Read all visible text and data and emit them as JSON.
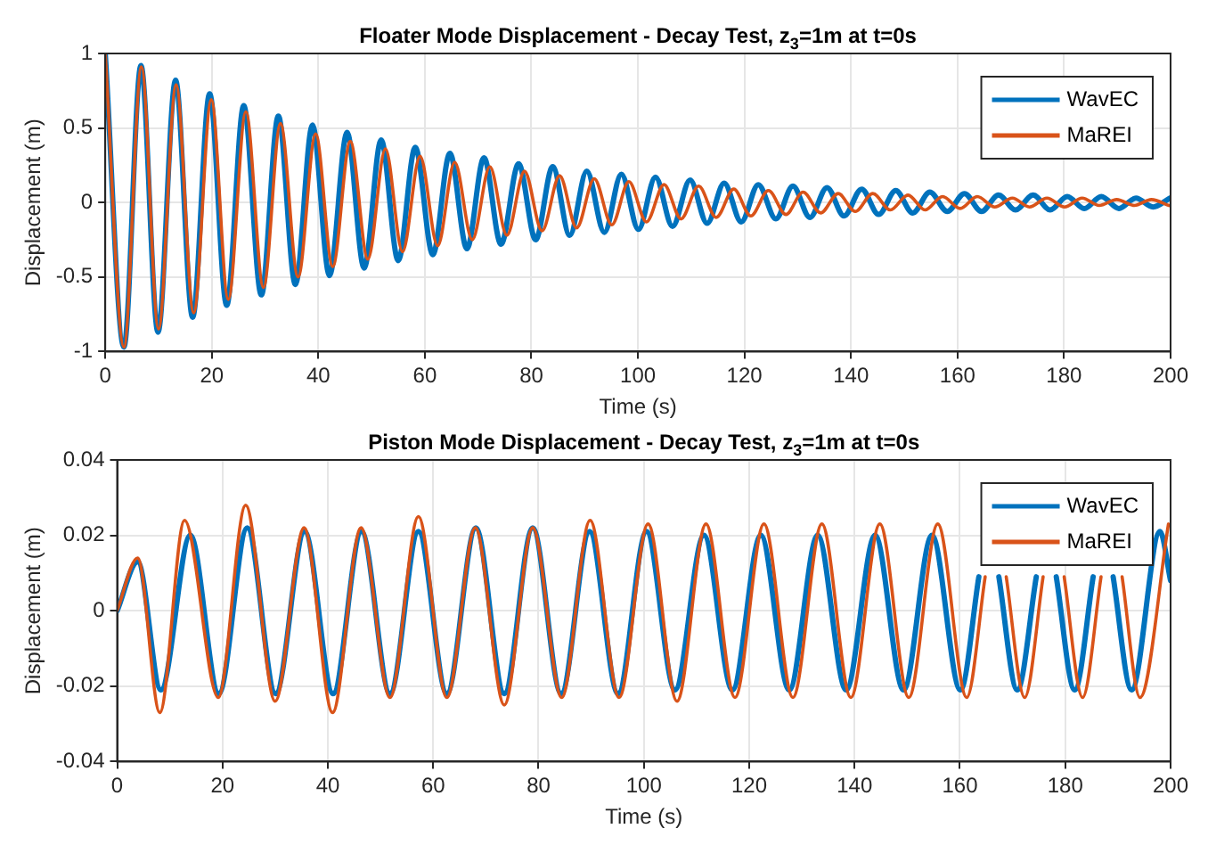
{
  "chart_data": [
    {
      "type": "line",
      "title": "Floater Mode Displacement - Decay Test, z$_{3}$=1m at t=0s",
      "xlabel": "Time (s)",
      "ylabel": "Displacement (m)",
      "xlim": [
        0,
        200
      ],
      "xticks": [
        0,
        20,
        40,
        60,
        80,
        100,
        120,
        140,
        160,
        180,
        200
      ],
      "ylim": [
        -1,
        1
      ],
      "yticks": [
        -1,
        -0.5,
        0,
        0.5,
        1
      ],
      "grid": true,
      "legend": "top right",
      "marker": "none",
      "line_style": "solid",
      "series": [
        {
          "name": "WavEC",
          "color": "#0072bd",
          "x": [
            0,
            3.5,
            6.7,
            9.9,
            13.2,
            16.4,
            19.6,
            22.8,
            26.0,
            29.3,
            32.5,
            35.7,
            38.9,
            42.1,
            45.4,
            48.6,
            51.8,
            55.0,
            58.2,
            61.5,
            64.7,
            67.9,
            71.1,
            74.3,
            77.6,
            80.8,
            84.0,
            87.2,
            90.4,
            93.7,
            96.9,
            100.1,
            103.3,
            106.5,
            109.8,
            113.0,
            116.2,
            119.4,
            122.6,
            125.9,
            129.1,
            132.3,
            135.5,
            138.7,
            142.0,
            145.2,
            148.4,
            151.6,
            154.8,
            158.1,
            161.3,
            164.5,
            167.7,
            170.9,
            174.2,
            177.4,
            180.6,
            183.8,
            187.0,
            190.3,
            193.5,
            196.7,
            199.9
          ],
          "values": [
            1,
            -0.97,
            0.92,
            -0.87,
            0.82,
            -0.77,
            0.73,
            -0.69,
            0.65,
            -0.62,
            0.58,
            -0.55,
            0.52,
            -0.49,
            0.47,
            -0.44,
            0.42,
            -0.39,
            0.37,
            -0.35,
            0.33,
            -0.31,
            0.3,
            -0.28,
            0.26,
            -0.25,
            0.24,
            -0.22,
            0.21,
            -0.2,
            0.19,
            -0.18,
            0.17,
            -0.16,
            0.15,
            -0.14,
            0.13,
            -0.13,
            0.12,
            -0.11,
            0.11,
            -0.1,
            0.1,
            -0.09,
            0.09,
            -0.08,
            0.08,
            -0.07,
            0.07,
            -0.06,
            0.06,
            -0.06,
            0.05,
            -0.05,
            0.05,
            -0.05,
            0.04,
            -0.04,
            0.04,
            -0.04,
            0.03,
            -0.03,
            0.03
          ]
        },
        {
          "name": "MaREI",
          "color": "#d95319",
          "x": [
            0,
            3.5,
            6.8,
            10.0,
            13.3,
            16.6,
            19.9,
            23.1,
            26.4,
            29.7,
            32.9,
            36.2,
            39.5,
            42.7,
            46.0,
            49.3,
            52.6,
            55.8,
            59.1,
            62.4,
            65.6,
            68.9,
            72.2,
            75.4,
            78.7,
            82.0,
            85.3,
            88.5,
            91.8,
            95.1,
            98.3,
            101.6,
            104.9,
            108.1,
            111.4,
            114.7,
            118.0,
            121.2,
            124.5,
            127.8,
            131.0,
            134.3,
            137.6,
            140.8,
            144.1,
            147.4,
            150.7,
            153.9,
            157.2,
            160.5,
            163.7,
            167.0,
            170.3,
            173.5,
            176.8,
            180.1,
            183.4,
            186.6,
            189.9,
            193.2,
            196.4,
            199.7
          ],
          "values": [
            1,
            -0.97,
            0.91,
            -0.85,
            0.79,
            -0.74,
            0.69,
            -0.65,
            0.61,
            -0.57,
            0.53,
            -0.5,
            0.46,
            -0.43,
            0.41,
            -0.38,
            0.36,
            -0.33,
            0.31,
            -0.29,
            0.27,
            -0.25,
            0.24,
            -0.22,
            0.21,
            -0.19,
            0.18,
            -0.17,
            0.16,
            -0.15,
            0.14,
            -0.13,
            0.12,
            -0.11,
            0.11,
            -0.1,
            0.09,
            -0.09,
            0.08,
            -0.08,
            0.07,
            -0.07,
            0.06,
            -0.06,
            0.06,
            -0.05,
            0.05,
            -0.05,
            0.04,
            -0.04,
            0.04,
            -0.03,
            0.03,
            -0.03,
            0.03,
            -0.03,
            0.03,
            -0.02,
            0.02,
            -0.02,
            0.02,
            -0.02
          ]
        }
      ]
    },
    {
      "type": "line",
      "title": "Piston Mode Displacement - Decay Test, z$_{3}$=1m at t=0s",
      "xlabel": "Time (s)",
      "ylabel": "Displacement (m)",
      "xlim": [
        0,
        200
      ],
      "xticks": [
        0,
        20,
        40,
        60,
        80,
        100,
        120,
        140,
        160,
        180,
        200
      ],
      "ylim": [
        -0.04,
        0.04
      ],
      "yticks": [
        -0.04,
        -0.02,
        0,
        0.02,
        0.04
      ],
      "grid": true,
      "legend": "top right",
      "marker": "none",
      "line_style": "solid",
      "series": [
        {
          "name": "WavEC",
          "color": "#0072bd",
          "x": [
            0,
            3.9,
            8.3,
            13.9,
            19.3,
            24.7,
            30.1,
            35.6,
            41.0,
            46.4,
            51.8,
            57.2,
            62.6,
            68.1,
            73.5,
            78.9,
            84.3,
            89.7,
            95.1,
            100.5,
            105.9,
            111.4,
            116.8,
            122.2,
            127.6,
            133.0,
            138.4,
            143.9,
            149.3,
            154.7,
            160.1,
            163.6,
            165.5,
            167.4,
            170.9,
            174.5,
            176.4,
            178.3,
            181.8,
            185.3,
            187.2,
            189.1,
            192.6,
            198.0,
            200
          ],
          "values": [
            0,
            0.013,
            -0.021,
            0.02,
            -0.022,
            0.022,
            -0.022,
            0.021,
            -0.022,
            0.021,
            -0.022,
            0.021,
            -0.022,
            0.022,
            -0.022,
            0.022,
            -0.022,
            0.021,
            -0.022,
            0.021,
            -0.021,
            0.02,
            -0.021,
            0.02,
            -0.021,
            0.02,
            -0.021,
            0.02,
            -0.021,
            0.02,
            -0.021,
            0.009,
            null,
            0.009,
            -0.021,
            0.009,
            null,
            0.009,
            -0.021,
            0.009,
            null,
            0.009,
            -0.021,
            0.021,
            0.008
          ]
        },
        {
          "name": "MaREI",
          "color": "#d95319",
          "x": [
            0,
            3.9,
            8.1,
            12.8,
            19.2,
            24.4,
            30.0,
            35.5,
            40.9,
            46.3,
            51.8,
            57.2,
            62.6,
            68.0,
            73.5,
            78.9,
            84.4,
            89.8,
            95.3,
            100.8,
            106.3,
            111.8,
            117.3,
            122.8,
            128.3,
            133.8,
            139.3,
            144.8,
            150.3,
            155.8,
            161.3,
            164.8,
            166.8,
            168.8,
            172.3,
            175.8,
            177.8,
            179.8,
            183.3,
            186.8,
            188.8,
            190.8,
            194.2,
            199.6
          ],
          "values": [
            0,
            0.014,
            -0.027,
            0.024,
            -0.023,
            0.028,
            -0.024,
            0.022,
            -0.027,
            0.022,
            -0.023,
            0.025,
            -0.023,
            0.022,
            -0.025,
            0.022,
            -0.023,
            0.024,
            -0.023,
            0.023,
            -0.024,
            0.023,
            -0.023,
            0.023,
            -0.023,
            0.023,
            -0.023,
            0.023,
            -0.023,
            0.023,
            -0.023,
            0.009,
            null,
            0.009,
            -0.023,
            0.009,
            null,
            0.009,
            -0.023,
            0.009,
            null,
            0.009,
            -0.023,
            0.023
          ]
        }
      ]
    }
  ]
}
